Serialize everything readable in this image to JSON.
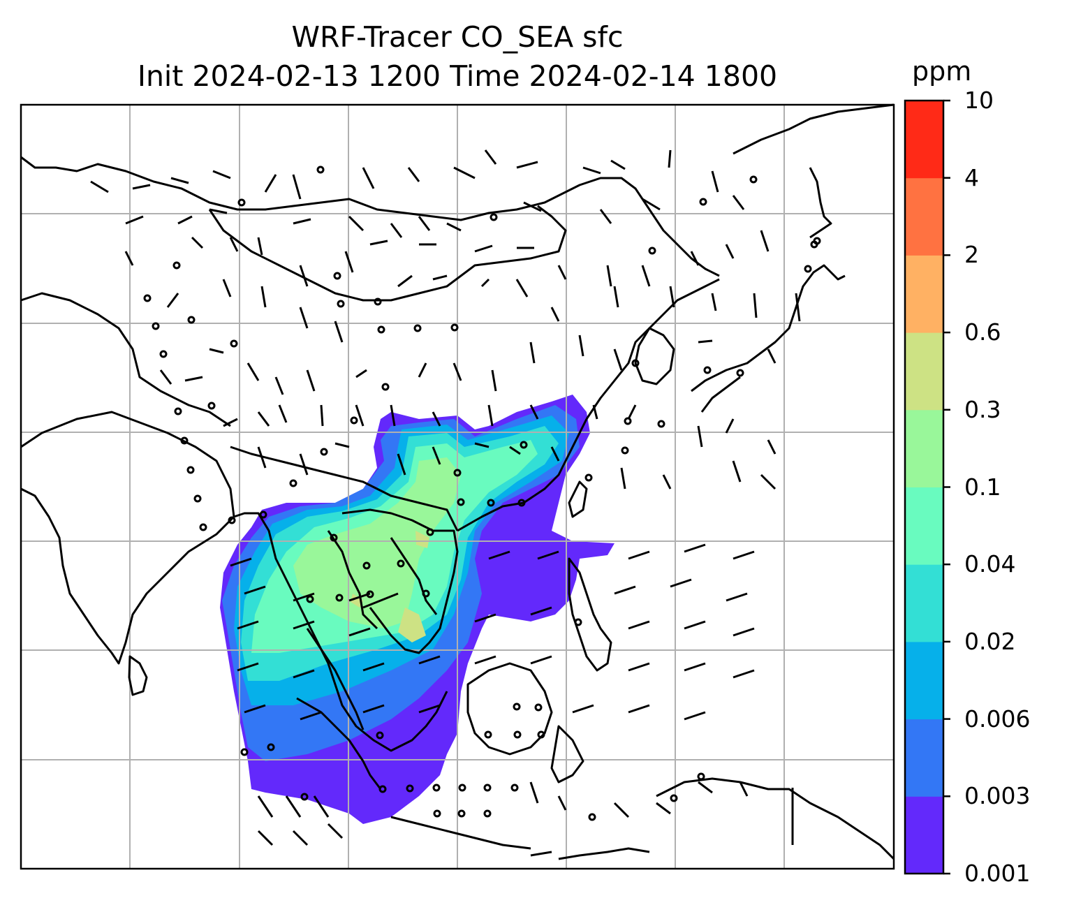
{
  "title_line1": "WRF-Tracer CO_SEA sfc",
  "title_line2": "Init 2024-02-13 1200 Time 2024-02-14 1800",
  "colorbar": {
    "unit": "ppm",
    "levels": [
      "0.001",
      "0.003",
      "0.006",
      "0.02",
      "0.04",
      "0.1",
      "0.3",
      "0.6",
      "2",
      "4",
      "10"
    ],
    "colors": [
      "#6329fb",
      "#3377f5",
      "#06b0ea",
      "#33dfd5",
      "#69fbbf",
      "#99f79a",
      "#cde284",
      "#ffb163",
      "#ff7241",
      "#ff2a17"
    ]
  },
  "map": {
    "coastline_color": "#000000",
    "gridline_color": "#b0b0b0",
    "features": [
      "coastlines",
      "country-borders",
      "lat-lon-gridlines",
      "wind-barbs",
      "tracer-concentration-fill"
    ]
  }
}
